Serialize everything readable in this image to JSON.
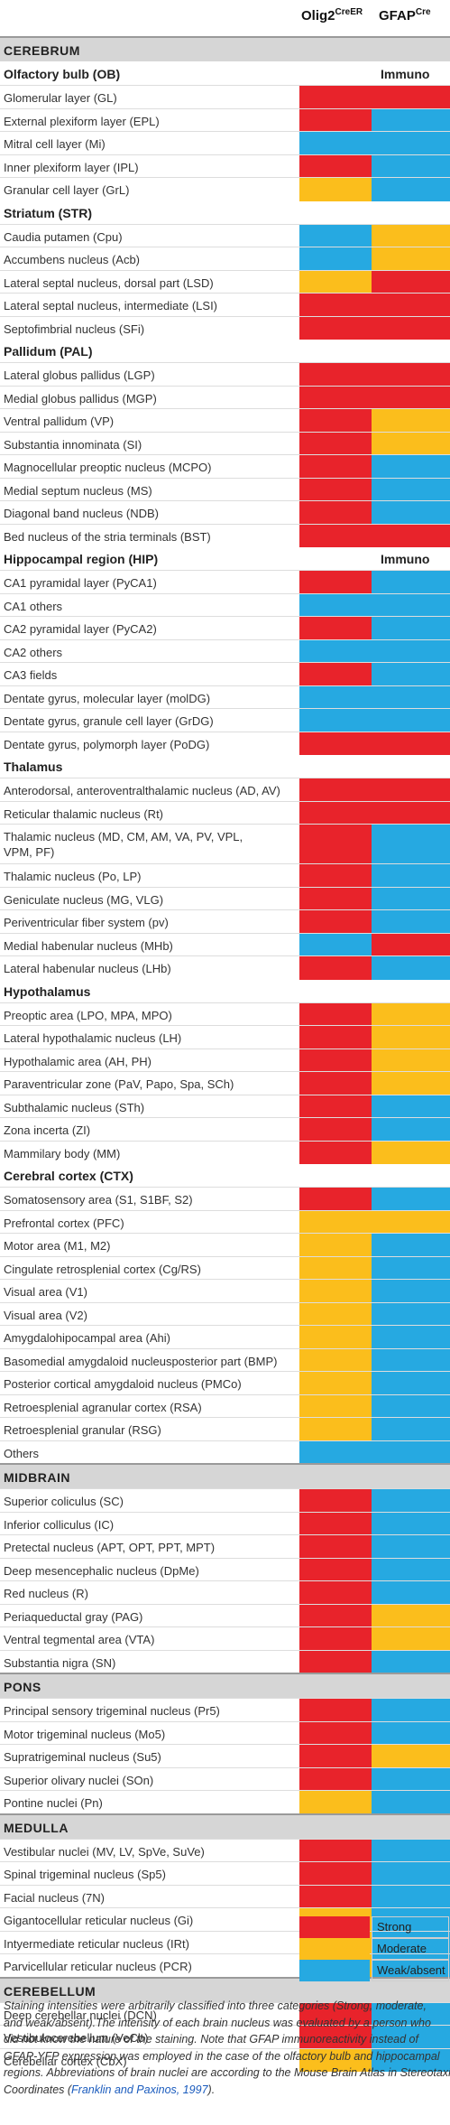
{
  "columns": [
    "Olig2",
    "CreER",
    "GFAP",
    "Cre"
  ],
  "colors": {
    "S": "#e8232b",
    "M": "#fbbe1c",
    "W": "#26a9e1"
  },
  "rows": [
    {
      "t": "section",
      "label": "CEREBRUM"
    },
    {
      "t": "sub",
      "label": "Olfactory bulb (OB)",
      "immuno": "Immuno"
    },
    {
      "t": "data",
      "label": "Glomerular layer (GL)",
      "a": "S",
      "b": "S"
    },
    {
      "t": "data",
      "label": "External plexiform layer (EPL)",
      "a": "S",
      "b": "W"
    },
    {
      "t": "data",
      "label": "Mitral cell layer (Mi)",
      "a": "W",
      "b": "W"
    },
    {
      "t": "data",
      "label": "Inner plexiform layer (IPL)",
      "a": "S",
      "b": "W"
    },
    {
      "t": "data",
      "label": "Granular cell layer (GrL)",
      "a": "M",
      "b": "W"
    },
    {
      "t": "sub",
      "label": "Striatum (STR)"
    },
    {
      "t": "data",
      "label": "Caudia putamen (Cpu)",
      "a": "W",
      "b": "M"
    },
    {
      "t": "data",
      "label": "Accumbens nucleus (Acb)",
      "a": "W",
      "b": "M"
    },
    {
      "t": "data",
      "label": "Lateral septal nucleus, dorsal part (LSD)",
      "a": "M",
      "b": "S"
    },
    {
      "t": "data",
      "label": "Lateral septal nucleus, intermediate (LSI)",
      "a": "S",
      "b": "S"
    },
    {
      "t": "data",
      "label": "Septofimbrial nucleus (SFi)",
      "a": "S",
      "b": "S"
    },
    {
      "t": "sub",
      "label": "Pallidum (PAL)"
    },
    {
      "t": "data",
      "label": "Lateral globus pallidus (LGP)",
      "a": "S",
      "b": "S"
    },
    {
      "t": "data",
      "label": "Medial globus pallidus (MGP)",
      "a": "S",
      "b": "S"
    },
    {
      "t": "data",
      "label": "Ventral pallidum (VP)",
      "a": "S",
      "b": "M"
    },
    {
      "t": "data",
      "label": "Substantia innominata (SI)",
      "a": "S",
      "b": "M"
    },
    {
      "t": "data",
      "label": "Magnocellular preoptic nucleus (MCPO)",
      "a": "S",
      "b": "W"
    },
    {
      "t": "data",
      "label": "Medial septum nucleus (MS)",
      "a": "S",
      "b": "W"
    },
    {
      "t": "data",
      "label": "Diagonal band nucleus (NDB)",
      "a": "S",
      "b": "W"
    },
    {
      "t": "data",
      "label": "Bed nucleus of the stria terminals (BST)",
      "a": "S",
      "b": "S"
    },
    {
      "t": "sub",
      "label": "Hippocampal region (HIP)",
      "immuno": "Immuno"
    },
    {
      "t": "data",
      "label": "CA1 pyramidal layer (PyCA1)",
      "a": "S",
      "b": "W"
    },
    {
      "t": "data",
      "label": "CA1 others",
      "a": "W",
      "b": "W"
    },
    {
      "t": "data",
      "label": "CA2 pyramidal layer (PyCA2)",
      "a": "S",
      "b": "W"
    },
    {
      "t": "data",
      "label": "CA2 others",
      "a": "W",
      "b": "W"
    },
    {
      "t": "data",
      "label": "CA3 fields",
      "a": "S",
      "b": "W"
    },
    {
      "t": "data",
      "label": "Dentate gyrus, molecular layer (molDG)",
      "a": "W",
      "b": "W"
    },
    {
      "t": "data",
      "label": "Dentate gyrus, granule cell layer (GrDG)",
      "a": "W",
      "b": "W"
    },
    {
      "t": "data",
      "label": "Dentate gyrus, polymorph layer (PoDG)",
      "a": "S",
      "b": "S"
    },
    {
      "t": "sub",
      "label": "Thalamus"
    },
    {
      "t": "data",
      "label": "Anterodorsal, anteroventralthalamic nucleus (AD, AV)",
      "a": "S",
      "b": "S"
    },
    {
      "t": "data",
      "label": "Reticular thalamic nucleus (Rt)",
      "a": "S",
      "b": "S"
    },
    {
      "t": "data",
      "lines": [
        "Thalamic nucleus (MD, CM, AM, VA, PV, VPL,",
        "VPM, PF)"
      ],
      "a": "S",
      "b": "W",
      "tall": true
    },
    {
      "t": "data",
      "label": "Thalamic nucleus (Po, LP)",
      "a": "S",
      "b": "W"
    },
    {
      "t": "data",
      "label": "Geniculate nucleus (MG, VLG)",
      "a": "S",
      "b": "W"
    },
    {
      "t": "data",
      "label": "Periventricular fiber system (pv)",
      "a": "S",
      "b": "W"
    },
    {
      "t": "data",
      "label": "Medial habenular nucleus (MHb)",
      "a": "W",
      "b": "S"
    },
    {
      "t": "data",
      "label": "Lateral habenular nucleus (LHb)",
      "a": "S",
      "b": "W"
    },
    {
      "t": "sub",
      "label": "Hypothalamus"
    },
    {
      "t": "data",
      "label": "Preoptic area (LPO, MPA, MPO)",
      "a": "S",
      "b": "M"
    },
    {
      "t": "data",
      "label": "Lateral hypothalamic nucleus (LH)",
      "a": "S",
      "b": "M"
    },
    {
      "t": "data",
      "label": "Hypothalamic area (AH, PH)",
      "a": "S",
      "b": "M"
    },
    {
      "t": "data",
      "label": "Paraventricular zone (PaV, Papo, Spa, SCh)",
      "a": "S",
      "b": "M"
    },
    {
      "t": "data",
      "label": "Subthalamic nucleus (STh)",
      "a": "S",
      "b": "W"
    },
    {
      "t": "data",
      "label": "Zona incerta (ZI)",
      "a": "S",
      "b": "W"
    },
    {
      "t": "data",
      "label": "Mammilary body (MM)",
      "a": "S",
      "b": "M"
    },
    {
      "t": "sub",
      "label": "Cerebral cortex (CTX)"
    },
    {
      "t": "data",
      "label": "Somatosensory area (S1, S1BF, S2)",
      "a": "S",
      "b": "W"
    },
    {
      "t": "data",
      "label": "Prefrontal cortex (PFC)",
      "a": "M",
      "b": "M"
    },
    {
      "t": "data",
      "label": "Motor area (M1, M2)",
      "a": "M",
      "b": "W"
    },
    {
      "t": "data",
      "label": "Cingulate retrosplenial cortex (Cg/RS)",
      "a": "M",
      "b": "W"
    },
    {
      "t": "data",
      "label": "Visual area (V1)",
      "a": "M",
      "b": "W"
    },
    {
      "t": "data",
      "label": "Visual area (V2)",
      "a": "M",
      "b": "W"
    },
    {
      "t": "data",
      "label": "Amygdalohipocampal area (Ahi)",
      "a": "M",
      "b": "W"
    },
    {
      "t": "data",
      "label": "Basomedial amygdaloid nucleusposterior part (BMP)",
      "a": "M",
      "b": "W"
    },
    {
      "t": "data",
      "label": "Posterior cortical amygdaloid nucleus (PMCo)",
      "a": "M",
      "b": "W"
    },
    {
      "t": "data",
      "label": "Retroesplenial agranular cortex (RSA)",
      "a": "M",
      "b": "W"
    },
    {
      "t": "data",
      "label": "Retroesplenial granular (RSG)",
      "a": "M",
      "b": "W"
    },
    {
      "t": "data",
      "label": "Others",
      "a": "W",
      "b": "W"
    },
    {
      "t": "section",
      "label": "MIDBRAIN"
    },
    {
      "t": "data",
      "label": "Superior coliculus (SC)",
      "a": "S",
      "b": "W"
    },
    {
      "t": "data",
      "label": "Inferior colliculus (IC)",
      "a": "S",
      "b": "W"
    },
    {
      "t": "data",
      "label": "Pretectal nucleus (APT, OPT, PPT, MPT)",
      "a": "S",
      "b": "W"
    },
    {
      "t": "data",
      "label": "Deep mesencephalic nucleus (DpMe)",
      "a": "S",
      "b": "W"
    },
    {
      "t": "data",
      "label": "Red nucleus (R)",
      "a": "S",
      "b": "W"
    },
    {
      "t": "data",
      "label": "Periaqueductal gray (PAG)",
      "a": "S",
      "b": "M"
    },
    {
      "t": "data",
      "label": "Ventral tegmental area (VTA)",
      "a": "S",
      "b": "M"
    },
    {
      "t": "data",
      "label": "Substantia nigra (SN)",
      "a": "S",
      "b": "W"
    },
    {
      "t": "section",
      "label": "PONS"
    },
    {
      "t": "data",
      "label": "Principal sensory trigeminal nucleus (Pr5)",
      "a": "S",
      "b": "W"
    },
    {
      "t": "data",
      "label": "Motor trigeminal nucleus (Mo5)",
      "a": "S",
      "b": "W"
    },
    {
      "t": "data",
      "label": "Supratrigeminal nucleus (Su5)",
      "a": "S",
      "b": "M"
    },
    {
      "t": "data",
      "label": "Superior olivary nuclei (SOn)",
      "a": "S",
      "b": "W"
    },
    {
      "t": "data",
      "label": "Pontine nuclei (Pn)",
      "a": "M",
      "b": "W"
    },
    {
      "t": "section",
      "label": "MEDULLA"
    },
    {
      "t": "data",
      "label": "Vestibular nuclei (MV, LV, SpVe, SuVe)",
      "a": "S",
      "b": "W"
    },
    {
      "t": "data",
      "label": "Spinal trigeminal nucleus (Sp5)",
      "a": "S",
      "b": "W"
    },
    {
      "t": "data",
      "label": "Facial nucleus (7N)",
      "a": "S",
      "b": "W"
    },
    {
      "t": "data",
      "label": "Gigantocellular reticular nucleus (Gi)",
      "a": "M",
      "b": "W"
    },
    {
      "t": "data",
      "label": "Intyermediate reticular nucleus (IRt)",
      "a": "M",
      "b": "W"
    },
    {
      "t": "data",
      "label": "Parvicellular reticular nucleus (PCR)",
      "a": "M",
      "b": "W"
    },
    {
      "t": "section",
      "label": "CEREBELLUM"
    },
    {
      "t": "data",
      "label": "Deep cerebellar nuclei (DCN)",
      "a": "S",
      "b": "W"
    },
    {
      "t": "data",
      "label": "Vestibulocerebellum (VeCb)",
      "a": "S",
      "b": "W"
    },
    {
      "t": "data",
      "label": "Cerebellar cortex (CbX)",
      "a": "M",
      "b": "W"
    }
  ],
  "legend": [
    {
      "key": "S",
      "label": "Strong"
    },
    {
      "key": "M",
      "label": "Moderate"
    },
    {
      "key": "W",
      "label": "Weak/absent"
    }
  ],
  "caption_lines": [
    "Staining intensities were arbitrarily classified into three categories (Strong, moderate,",
    "and weak/absent).The intensity of each brain nucleus was evaluated by a person who",
    "did not know the nature of the staining. Note that GFAP immunoreactivity instead of",
    "GFAP-YFP expression was employed in the case of the olfactory bulb and hippocampal",
    "regions. Abbreviations of brain nuclei are according to the Mouse Brain Atlas in Stereotaxic",
    "Coordinates (",
    "Franklin and Paxinos, 1997",
    ")."
  ]
}
